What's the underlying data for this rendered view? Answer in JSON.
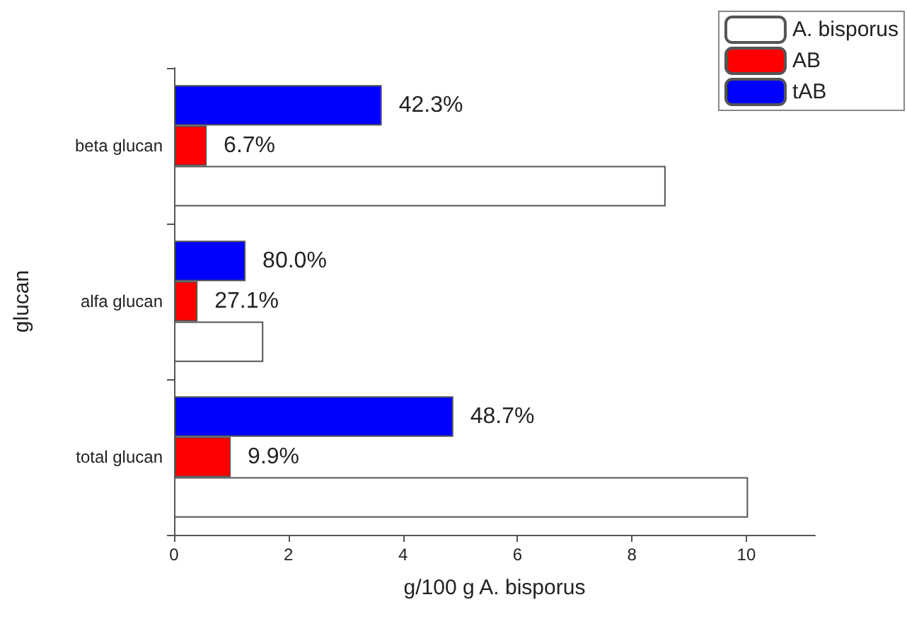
{
  "chart_data": {
    "type": "bar",
    "orientation": "horizontal",
    "xlabel": "g/100 g A. bisporus",
    "ylabel": "glucan",
    "categories": [
      "beta glucan",
      "alfa glucan",
      "total glucan"
    ],
    "series": [
      {
        "name": "A. bisporus",
        "color": "#ffffff",
        "values": [
          8.59,
          1.56,
          10.03
        ]
      },
      {
        "name": "AB",
        "color": "#ff0000",
        "values": [
          0.57,
          0.41,
          0.99
        ]
      },
      {
        "name": "tAB",
        "color": "#0000ff",
        "values": [
          3.63,
          1.25,
          4.88
        ]
      }
    ],
    "annotations": [
      "6.7%",
      "27.1%",
      "9.9%",
      "42.3%",
      "80.0%",
      "48.7%"
    ],
    "xlim": [
      0,
      11.2
    ],
    "xticks": [
      0,
      2,
      4,
      6,
      8,
      10
    ],
    "grid": false,
    "legend": "top right"
  }
}
